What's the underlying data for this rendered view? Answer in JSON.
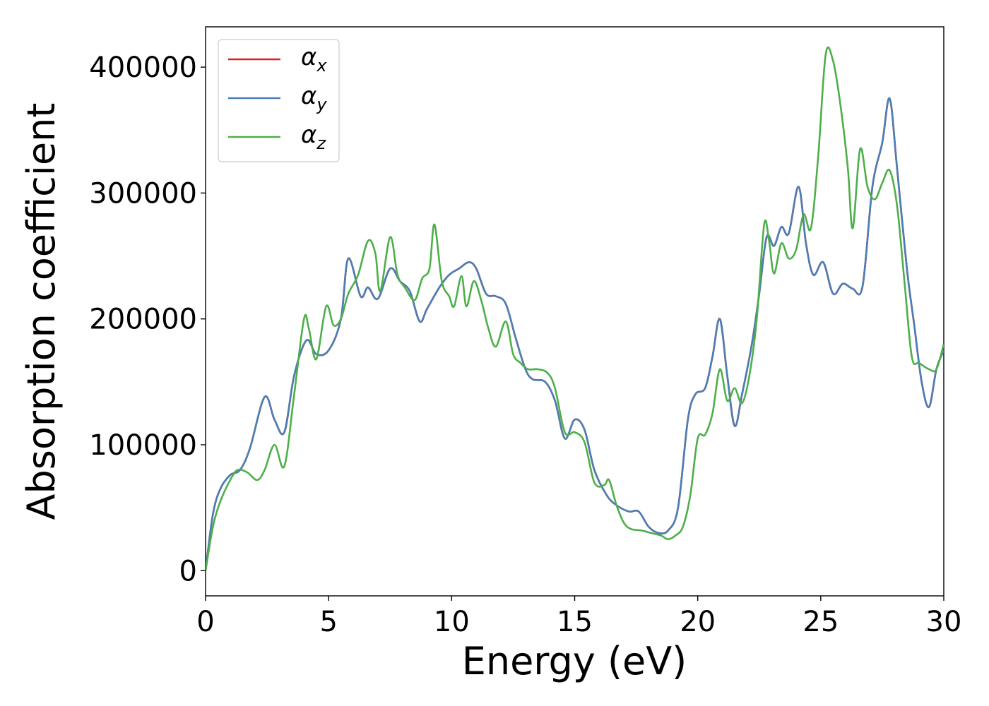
{
  "chart_data": {
    "type": "line",
    "title": "",
    "xlabel": "Energy (eV)",
    "ylabel": "Absorption coefficient",
    "xlim": [
      0,
      30
    ],
    "ylim": [
      -20000,
      432000
    ],
    "xticks": [
      0,
      5,
      10,
      15,
      20,
      25,
      30
    ],
    "xtick_labels": [
      "0",
      "5",
      "10",
      "15",
      "20",
      "25",
      "30"
    ],
    "yticks": [
      0,
      100000,
      200000,
      300000,
      400000
    ],
    "ytick_labels": [
      "0",
      "100000",
      "200000",
      "300000",
      "400000"
    ],
    "grid": false,
    "legend_position": "top-left",
    "series": [
      {
        "name": "αx",
        "legend_base": "α",
        "legend_sub": "x",
        "color": "#e41a1c",
        "x": [
          0,
          0.3,
          0.6,
          1,
          1.4,
          1.8,
          2.4,
          2.8,
          3.2,
          3.6,
          4.1,
          4.5,
          5,
          5.5,
          5.8,
          6.3,
          6.6,
          7,
          7.5,
          7.9,
          8.3,
          8.7,
          9,
          9.5,
          9.9,
          10.3,
          10.7,
          11,
          11.4,
          11.8,
          12.2,
          12.6,
          13,
          13.3,
          13.8,
          14.2,
          14.6,
          15,
          15.4,
          15.8,
          16.3,
          16.7,
          17.2,
          17.6,
          18,
          18.4,
          18.8,
          19.2,
          19.6,
          19.9,
          20.3,
          20.6,
          20.9,
          21.2,
          21.5,
          21.8,
          22.2,
          22.5,
          22.8,
          23.1,
          23.4,
          23.7,
          24.1,
          24.4,
          24.7,
          25.1,
          25.5,
          25.9,
          26.3,
          26.7,
          27.1,
          27.5,
          27.8,
          28.1,
          28.5,
          28.8,
          29.1,
          29.4,
          29.7,
          30
        ],
        "y": [
          0,
          45000,
          65000,
          76000,
          80000,
          97000,
          138000,
          120000,
          110000,
          155000,
          183000,
          172000,
          175000,
          200000,
          248000,
          218000,
          225000,
          216000,
          240000,
          230000,
          222000,
          198000,
          208000,
          225000,
          235000,
          240000,
          245000,
          240000,
          220000,
          218000,
          212000,
          185000,
          160000,
          152000,
          150000,
          135000,
          105000,
          120000,
          112000,
          80000,
          60000,
          52000,
          47000,
          47000,
          35000,
          30000,
          32000,
          50000,
          120000,
          140000,
          145000,
          170000,
          200000,
          155000,
          115000,
          140000,
          180000,
          220000,
          265000,
          258000,
          273000,
          268000,
          305000,
          260000,
          235000,
          245000,
          220000,
          228000,
          224000,
          226000,
          305000,
          340000,
          375000,
          320000,
          240000,
          195000,
          150000,
          130000,
          160000,
          175000
        ]
      },
      {
        "name": "αy",
        "legend_base": "α",
        "legend_sub": "y",
        "color": "#4a7fb5",
        "x": [
          0,
          0.3,
          0.6,
          1,
          1.4,
          1.8,
          2.4,
          2.8,
          3.2,
          3.6,
          4.1,
          4.5,
          5,
          5.5,
          5.8,
          6.3,
          6.6,
          7,
          7.5,
          7.9,
          8.3,
          8.7,
          9,
          9.5,
          9.9,
          10.3,
          10.7,
          11,
          11.4,
          11.8,
          12.2,
          12.6,
          13,
          13.3,
          13.8,
          14.2,
          14.6,
          15,
          15.4,
          15.8,
          16.3,
          16.7,
          17.2,
          17.6,
          18,
          18.4,
          18.8,
          19.2,
          19.6,
          19.9,
          20.3,
          20.6,
          20.9,
          21.2,
          21.5,
          21.8,
          22.2,
          22.5,
          22.8,
          23.1,
          23.4,
          23.7,
          24.1,
          24.4,
          24.7,
          25.1,
          25.5,
          25.9,
          26.3,
          26.7,
          27.1,
          27.5,
          27.8,
          28.1,
          28.5,
          28.8,
          29.1,
          29.4,
          29.7,
          30
        ],
        "y": [
          0,
          45000,
          65000,
          76000,
          80000,
          97000,
          138000,
          120000,
          110000,
          155000,
          183000,
          172000,
          175000,
          200000,
          248000,
          218000,
          225000,
          216000,
          240000,
          230000,
          222000,
          198000,
          208000,
          225000,
          235000,
          240000,
          245000,
          240000,
          220000,
          218000,
          212000,
          185000,
          160000,
          152000,
          150000,
          135000,
          105000,
          120000,
          112000,
          80000,
          60000,
          52000,
          47000,
          47000,
          35000,
          30000,
          32000,
          50000,
          120000,
          140000,
          145000,
          170000,
          200000,
          155000,
          115000,
          140000,
          180000,
          220000,
          265000,
          258000,
          273000,
          268000,
          305000,
          260000,
          235000,
          245000,
          220000,
          228000,
          224000,
          226000,
          305000,
          340000,
          375000,
          320000,
          240000,
          195000,
          150000,
          130000,
          160000,
          175000
        ]
      },
      {
        "name": "αz",
        "legend_base": "α",
        "legend_sub": "z",
        "color": "#4daf4a",
        "x": [
          0,
          0.3,
          0.6,
          1,
          1.3,
          1.7,
          2.1,
          2.4,
          2.8,
          3.2,
          3.6,
          4,
          4.2,
          4.5,
          4.9,
          5.2,
          5.5,
          5.8,
          6.2,
          6.6,
          6.9,
          7.1,
          7.5,
          7.8,
          8.1,
          8.5,
          8.8,
          9.1,
          9.3,
          9.6,
          9.9,
          10.1,
          10.4,
          10.6,
          10.9,
          11.2,
          11.5,
          11.8,
          12.2,
          12.5,
          12.8,
          13.1,
          13.5,
          13.9,
          14.2,
          14.6,
          15,
          15.4,
          15.8,
          16.2,
          16.4,
          16.7,
          17,
          17.3,
          17.7,
          18.1,
          18.5,
          18.8,
          19.1,
          19.4,
          19.7,
          20,
          20.3,
          20.6,
          20.9,
          21.2,
          21.5,
          21.8,
          22.1,
          22.4,
          22.7,
          22.9,
          23.1,
          23.4,
          23.7,
          24,
          24.3,
          24.6,
          24.9,
          25.2,
          25.5,
          25.8,
          26.1,
          26.3,
          26.6,
          26.9,
          27.2,
          27.5,
          27.8,
          28.1,
          28.4,
          28.7,
          29,
          29.4,
          29.7,
          30
        ],
        "y": [
          0,
          35000,
          55000,
          72000,
          80000,
          78000,
          72000,
          80000,
          100000,
          83000,
          140000,
          200000,
          192000,
          168000,
          210000,
          195000,
          200000,
          220000,
          235000,
          262000,
          252000,
          222000,
          265000,
          235000,
          225000,
          215000,
          232000,
          240000,
          275000,
          230000,
          218000,
          210000,
          234000,
          210000,
          230000,
          215000,
          192000,
          178000,
          198000,
          172000,
          165000,
          160000,
          160000,
          157000,
          145000,
          110000,
          110000,
          102000,
          70000,
          68000,
          72000,
          52000,
          38000,
          33000,
          32000,
          30000,
          28000,
          25000,
          28000,
          35000,
          60000,
          105000,
          108000,
          125000,
          160000,
          135000,
          145000,
          133000,
          155000,
          200000,
          275000,
          262000,
          236000,
          260000,
          248000,
          255000,
          283000,
          272000,
          330000,
          410000,
          405000,
          370000,
          320000,
          272000,
          335000,
          305000,
          295000,
          308000,
          318000,
          290000,
          230000,
          170000,
          165000,
          160000,
          160000,
          180000
        ]
      }
    ]
  }
}
